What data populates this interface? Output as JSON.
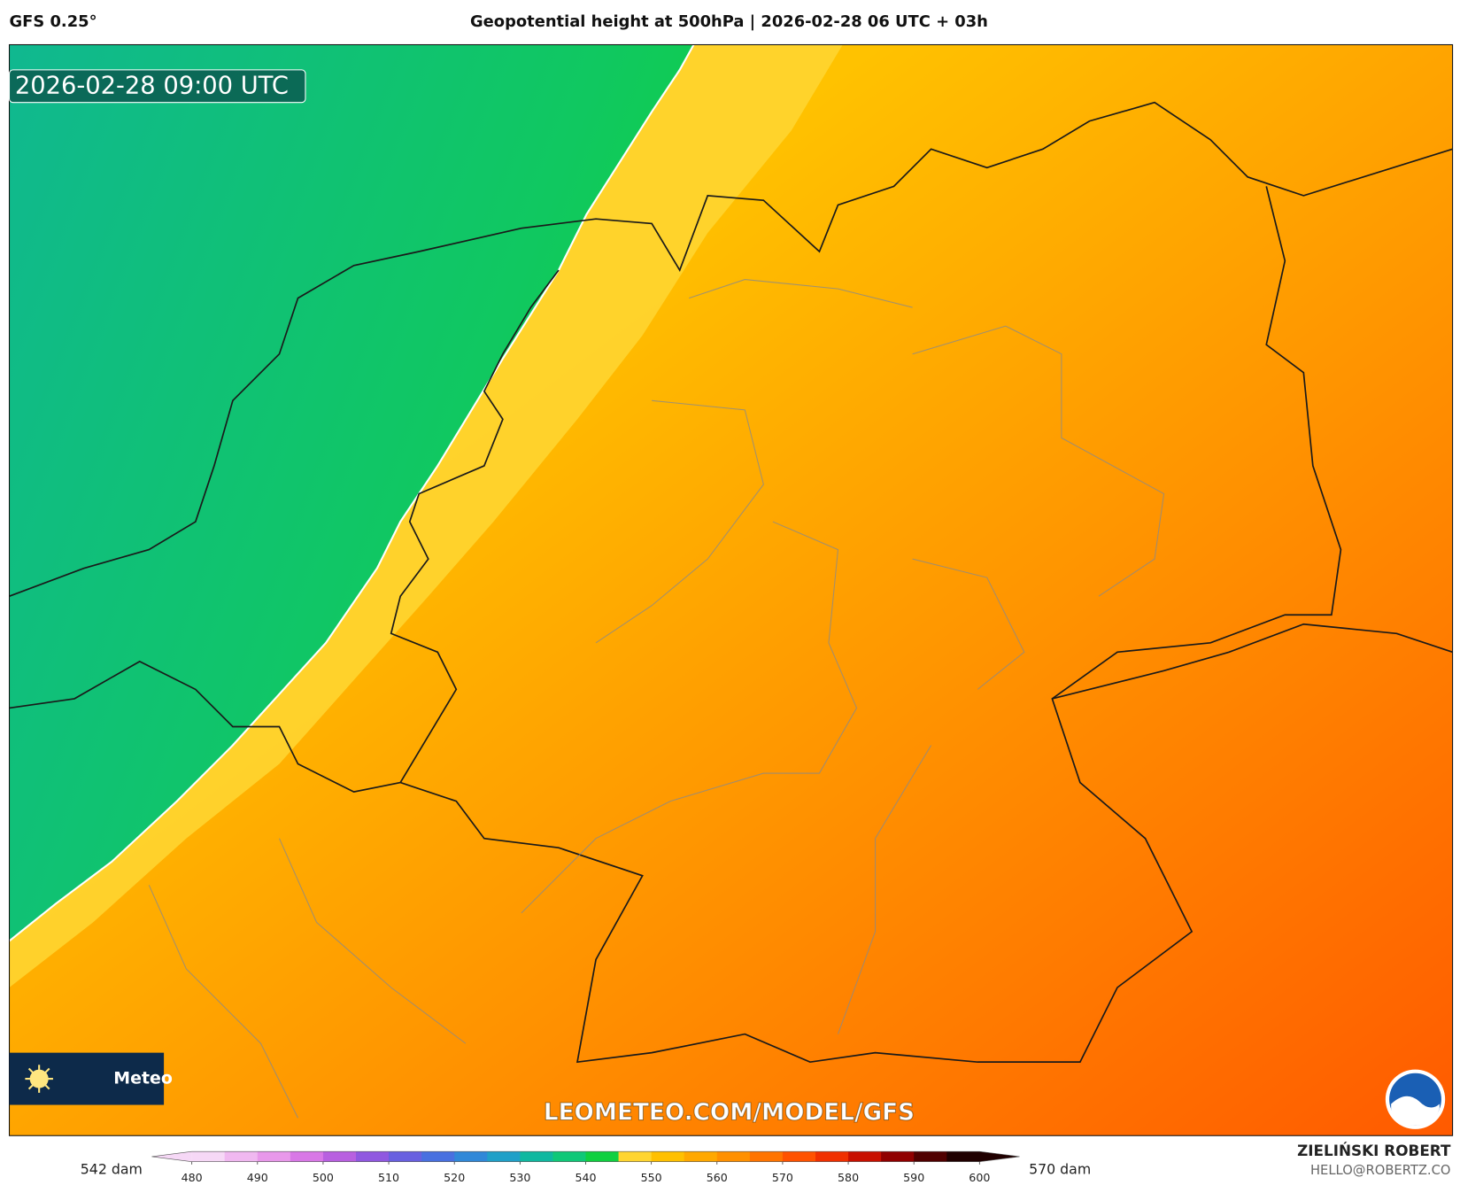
{
  "header": {
    "model": "GFS 0.25°",
    "title": "Geopotential height at 500hPa | 2026-02-28 06 UTC + 03h"
  },
  "map": {
    "valid_time": "2026-02-28 09:00 UTC",
    "watermark": "LEOMETEO.COM/MODEL/GFS",
    "logo_text": "Meteo"
  },
  "colorbar": {
    "min_label": "542 dam",
    "max_label": "570 dam",
    "ticks": [
      480,
      490,
      500,
      510,
      520,
      530,
      540,
      550,
      560,
      570,
      580,
      590,
      600
    ],
    "colors": [
      "#f6d8f6",
      "#f0b8f0",
      "#e898ea",
      "#d878e6",
      "#b860e0",
      "#9058e0",
      "#6860e0",
      "#4870e0",
      "#3088d8",
      "#20a0c8",
      "#10b8a0",
      "#10c878",
      "#10d040",
      "#ffd530",
      "#ffc000",
      "#ffa800",
      "#ff9000",
      "#ff7400",
      "#ff5200",
      "#f03000",
      "#c81000",
      "#900000",
      "#500000",
      "#200000"
    ]
  },
  "footer": {
    "author": "ZIELIŃSKI ROBERT",
    "email": "HELLO@ROBERTZ.CO"
  }
}
